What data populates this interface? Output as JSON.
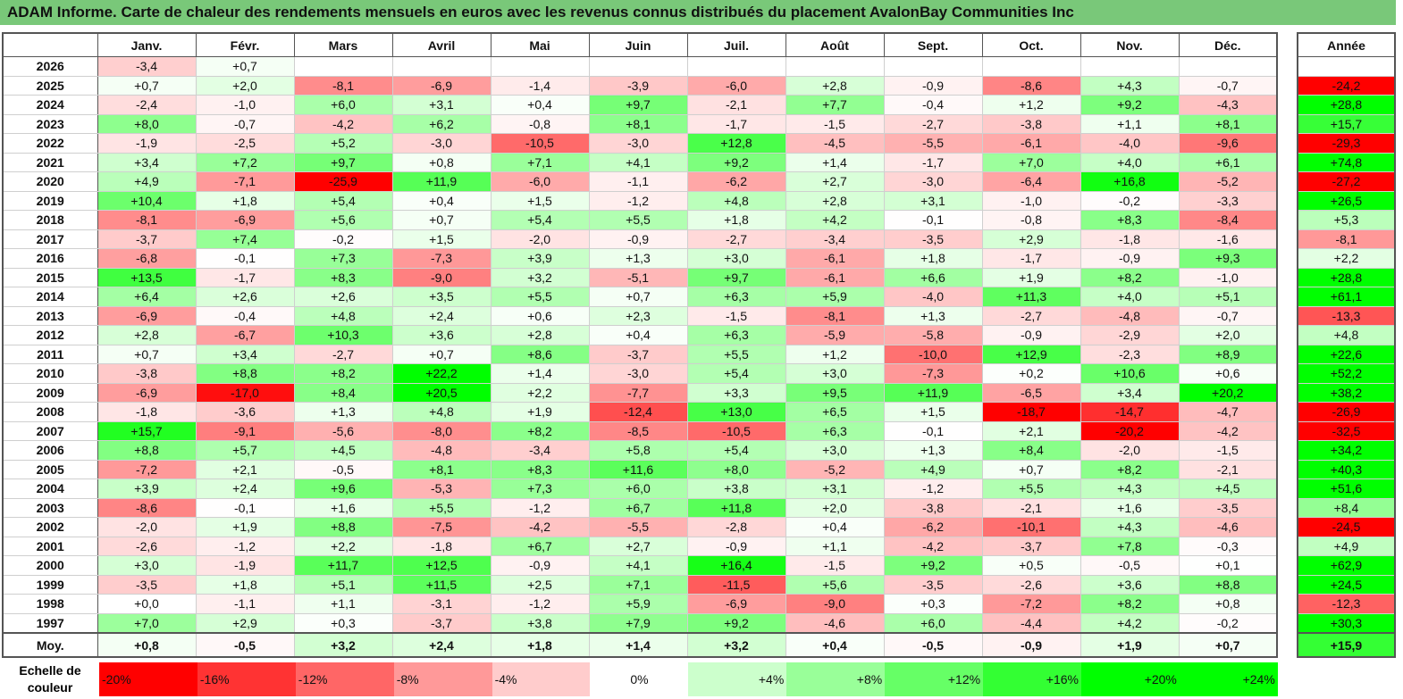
{
  "title": "ADAM Informe. Carte de chaleur des rendements mensuels en euros avec les revenus connus distribués du placement AvalonBay Communities Inc",
  "chart_data": {
    "type": "heatmap",
    "months": [
      "Janv.",
      "Févr.",
      "Mars",
      "Avril",
      "Mai",
      "Juin",
      "Juil.",
      "Août",
      "Sept.",
      "Oct.",
      "Nov.",
      "Déc."
    ],
    "year_column_header": "Année",
    "rows": [
      {
        "year": "2026",
        "months": [
          "-3,4",
          "+0,7",
          "",
          "",
          "",
          "",
          "",
          "",
          "",
          "",
          "",
          ""
        ],
        "annual": ""
      },
      {
        "year": "2025",
        "months": [
          "+0,7",
          "+2,0",
          "-8,1",
          "-6,9",
          "-1,4",
          "-3,9",
          "-6,0",
          "+2,8",
          "-0,9",
          "-8,6",
          "+4,3",
          "-0,7"
        ],
        "annual": "-24,2"
      },
      {
        "year": "2024",
        "months": [
          "-2,4",
          "-1,0",
          "+6,0",
          "+3,1",
          "+0,4",
          "+9,7",
          "-2,1",
          "+7,7",
          "-0,4",
          "+1,2",
          "+9,2",
          "-4,3"
        ],
        "annual": "+28,8"
      },
      {
        "year": "2023",
        "months": [
          "+8,0",
          "-0,7",
          "-4,2",
          "+6,2",
          "-0,8",
          "+8,1",
          "-1,7",
          "-1,5",
          "-2,7",
          "-3,8",
          "+1,1",
          "+8,1"
        ],
        "annual": "+15,7"
      },
      {
        "year": "2022",
        "months": [
          "-1,9",
          "-2,5",
          "+5,2",
          "-3,0",
          "-10,5",
          "-3,0",
          "+12,8",
          "-4,5",
          "-5,5",
          "-6,1",
          "-4,0",
          "-9,6"
        ],
        "annual": "-29,3"
      },
      {
        "year": "2021",
        "months": [
          "+3,4",
          "+7,2",
          "+9,7",
          "+0,8",
          "+7,1",
          "+4,1",
          "+9,2",
          "+1,4",
          "-1,7",
          "+7,0",
          "+4,0",
          "+6,1"
        ],
        "annual": "+74,8"
      },
      {
        "year": "2020",
        "months": [
          "+4,9",
          "-7,1",
          "-25,9",
          "+11,9",
          "-6,0",
          "-1,1",
          "-6,2",
          "+2,7",
          "-3,0",
          "-6,4",
          "+16,8",
          "-5,2"
        ],
        "annual": "-27,2"
      },
      {
        "year": "2019",
        "months": [
          "+10,4",
          "+1,8",
          "+5,4",
          "+0,4",
          "+1,5",
          "-1,2",
          "+4,8",
          "+2,8",
          "+3,1",
          "-1,0",
          "-0,2",
          "-3,3"
        ],
        "annual": "+26,5"
      },
      {
        "year": "2018",
        "months": [
          "-8,1",
          "-6,9",
          "+5,6",
          "+0,7",
          "+5,4",
          "+5,5",
          "+1,8",
          "+4,2",
          "-0,1",
          "-0,8",
          "+8,3",
          "-8,4"
        ],
        "annual": "+5,3"
      },
      {
        "year": "2017",
        "months": [
          "-3,7",
          "+7,4",
          "-0,2",
          "+1,5",
          "-2,0",
          "-0,9",
          "-2,7",
          "-3,4",
          "-3,5",
          "+2,9",
          "-1,8",
          "-1,6"
        ],
        "annual": "-8,1"
      },
      {
        "year": "2016",
        "months": [
          "-6,8",
          "-0,1",
          "+7,3",
          "-7,3",
          "+3,9",
          "+1,3",
          "+3,0",
          "-6,1",
          "+1,8",
          "-1,7",
          "-0,9",
          "+9,3"
        ],
        "annual": "+2,2"
      },
      {
        "year": "2015",
        "months": [
          "+13,5",
          "-1,7",
          "+8,3",
          "-9,0",
          "+3,2",
          "-5,1",
          "+9,7",
          "-6,1",
          "+6,6",
          "+1,9",
          "+8,2",
          "-1,0"
        ],
        "annual": "+28,8"
      },
      {
        "year": "2014",
        "months": [
          "+6,4",
          "+2,6",
          "+2,6",
          "+3,5",
          "+5,5",
          "+0,7",
          "+6,3",
          "+5,9",
          "-4,0",
          "+11,3",
          "+4,0",
          "+5,1"
        ],
        "annual": "+61,1"
      },
      {
        "year": "2013",
        "months": [
          "-6,9",
          "-0,4",
          "+4,8",
          "+2,4",
          "+0,6",
          "+2,3",
          "-1,5",
          "-8,1",
          "+1,3",
          "-2,7",
          "-4,8",
          "-0,7"
        ],
        "annual": "-13,3"
      },
      {
        "year": "2012",
        "months": [
          "+2,8",
          "-6,7",
          "+10,3",
          "+3,6",
          "+2,8",
          "+0,4",
          "+6,3",
          "-5,9",
          "-5,8",
          "-0,9",
          "-2,9",
          "+2,0"
        ],
        "annual": "+4,8"
      },
      {
        "year": "2011",
        "months": [
          "+0,7",
          "+3,4",
          "-2,7",
          "+0,7",
          "+8,6",
          "-3,7",
          "+5,5",
          "+1,2",
          "-10,0",
          "+12,9",
          "-2,3",
          "+8,9"
        ],
        "annual": "+22,6"
      },
      {
        "year": "2010",
        "months": [
          "-3,8",
          "+8,8",
          "+8,2",
          "+22,2",
          "+1,4",
          "-3,0",
          "+5,4",
          "+3,0",
          "-7,3",
          "+0,2",
          "+10,6",
          "+0,6"
        ],
        "annual": "+52,2"
      },
      {
        "year": "2009",
        "months": [
          "-6,9",
          "-17,0",
          "+8,4",
          "+20,5",
          "+2,2",
          "-7,7",
          "+3,3",
          "+9,5",
          "+11,9",
          "-6,5",
          "+3,4",
          "+20,2"
        ],
        "annual": "+38,2"
      },
      {
        "year": "2008",
        "months": [
          "-1,8",
          "-3,6",
          "+1,3",
          "+4,8",
          "+1,9",
          "-12,4",
          "+13,0",
          "+6,5",
          "+1,5",
          "-18,7",
          "-14,7",
          "-4,7"
        ],
        "annual": "-26,9"
      },
      {
        "year": "2007",
        "months": [
          "+15,7",
          "-9,1",
          "-5,6",
          "-8,0",
          "+8,2",
          "-8,5",
          "-10,5",
          "+6,3",
          "-0,1",
          "+2,1",
          "-20,2",
          "-4,2"
        ],
        "annual": "-32,5"
      },
      {
        "year": "2006",
        "months": [
          "+8,8",
          "+5,7",
          "+4,5",
          "-4,8",
          "-3,4",
          "+5,8",
          "+5,4",
          "+3,0",
          "+1,3",
          "+8,4",
          "-2,0",
          "-1,5"
        ],
        "annual": "+34,2"
      },
      {
        "year": "2005",
        "months": [
          "-7,2",
          "+2,1",
          "-0,5",
          "+8,1",
          "+8,3",
          "+11,6",
          "+8,0",
          "-5,2",
          "+4,9",
          "+0,7",
          "+8,2",
          "-2,1"
        ],
        "annual": "+40,3"
      },
      {
        "year": "2004",
        "months": [
          "+3,9",
          "+2,4",
          "+9,6",
          "-5,3",
          "+7,3",
          "+6,0",
          "+3,8",
          "+3,1",
          "-1,2",
          "+5,5",
          "+4,3",
          "+4,5"
        ],
        "annual": "+51,6"
      },
      {
        "year": "2003",
        "months": [
          "-8,6",
          "-0,1",
          "+1,6",
          "+5,5",
          "-1,2",
          "+6,7",
          "+11,8",
          "+2,0",
          "-3,8",
          "-2,1",
          "+1,6",
          "-3,5"
        ],
        "annual": "+8,4"
      },
      {
        "year": "2002",
        "months": [
          "-2,0",
          "+1,9",
          "+8,8",
          "-7,5",
          "-4,2",
          "-5,5",
          "-2,8",
          "+0,4",
          "-6,2",
          "-10,1",
          "+4,3",
          "-4,6"
        ],
        "annual": "-24,5"
      },
      {
        "year": "2001",
        "months": [
          "-2,6",
          "-1,2",
          "+2,2",
          "-1,8",
          "+6,7",
          "+2,7",
          "-0,9",
          "+1,1",
          "-4,2",
          "-3,7",
          "+7,8",
          "-0,3"
        ],
        "annual": "+4,9"
      },
      {
        "year": "2000",
        "months": [
          "+3,0",
          "-1,9",
          "+11,7",
          "+12,5",
          "-0,9",
          "+4,1",
          "+16,4",
          "-1,5",
          "+9,2",
          "+0,5",
          "-0,5",
          "+0,1"
        ],
        "annual": "+62,9"
      },
      {
        "year": "1999",
        "months": [
          "-3,5",
          "+1,8",
          "+5,1",
          "+11,5",
          "+2,5",
          "+7,1",
          "-11,5",
          "+5,6",
          "-3,5",
          "-2,6",
          "+3,6",
          "+8,8"
        ],
        "annual": "+24,5"
      },
      {
        "year": "1998",
        "months": [
          "+0,0",
          "-1,1",
          "+1,1",
          "-3,1",
          "-1,2",
          "+5,9",
          "-6,9",
          "-9,0",
          "+0,3",
          "-7,2",
          "+8,2",
          "+0,8"
        ],
        "annual": "-12,3"
      },
      {
        "year": "1997",
        "months": [
          "+7,0",
          "+2,9",
          "+0,3",
          "-3,7",
          "+3,8",
          "+7,9",
          "+9,2",
          "-4,6",
          "+6,0",
          "-4,4",
          "+4,2",
          "-0,2"
        ],
        "annual": "+30,3"
      }
    ],
    "average": {
      "label": "Moy.",
      "months": [
        "+0,8",
        "-0,5",
        "+3,2",
        "+2,4",
        "+1,8",
        "+1,4",
        "+3,2",
        "+0,4",
        "-0,5",
        "-0,9",
        "+1,9",
        "+0,7"
      ],
      "annual": "+15,9"
    },
    "color_scale": {
      "label": "Echelle de couleur",
      "stops": [
        {
          "label": "-20%",
          "value": -20
        },
        {
          "label": "-16%",
          "value": -16
        },
        {
          "label": "-12%",
          "value": -12
        },
        {
          "label": "-8%",
          "value": -8
        },
        {
          "label": "-4%",
          "value": -4
        },
        {
          "label": "0%",
          "value": 0
        },
        {
          "label": "+4%",
          "value": 4
        },
        {
          "label": "+8%",
          "value": 8
        },
        {
          "label": "+12%",
          "value": 12
        },
        {
          "label": "+16%",
          "value": 16
        },
        {
          "label": "+20%",
          "value": 20
        },
        {
          "label": "+24%",
          "value": 24
        }
      ]
    },
    "colors": {
      "negative": "#ff0000",
      "zero": "#ffffff",
      "positive": "#00ff00",
      "title_bg": "#79c879"
    }
  }
}
